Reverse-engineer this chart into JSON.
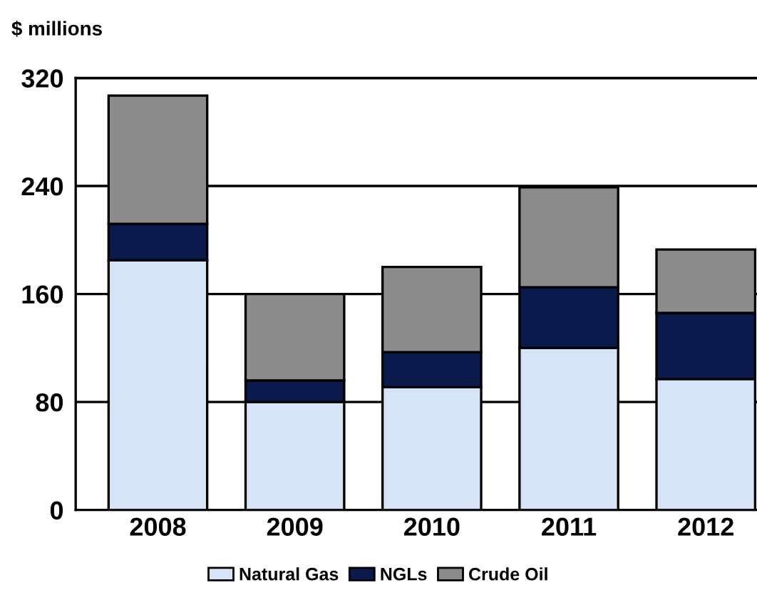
{
  "chart_data": {
    "type": "bar",
    "stacked": true,
    "title": "$ millions",
    "categories": [
      "2008",
      "2009",
      "2010",
      "2011",
      "2012"
    ],
    "series": [
      {
        "name": "Natural Gas",
        "color": "#d6e4f7",
        "values": [
          185,
          80,
          91,
          120,
          97
        ]
      },
      {
        "name": "NGLs",
        "color": "#0a1a4d",
        "values": [
          27,
          16,
          26,
          45,
          49
        ]
      },
      {
        "name": "Crude Oil",
        "color": "#8c8c8c",
        "values": [
          95,
          64,
          63,
          74,
          47
        ]
      }
    ],
    "ylim": [
      0,
      320
    ],
    "yticks": [
      0,
      80,
      160,
      240,
      320
    ],
    "grid": "y",
    "legend": "bottom"
  }
}
